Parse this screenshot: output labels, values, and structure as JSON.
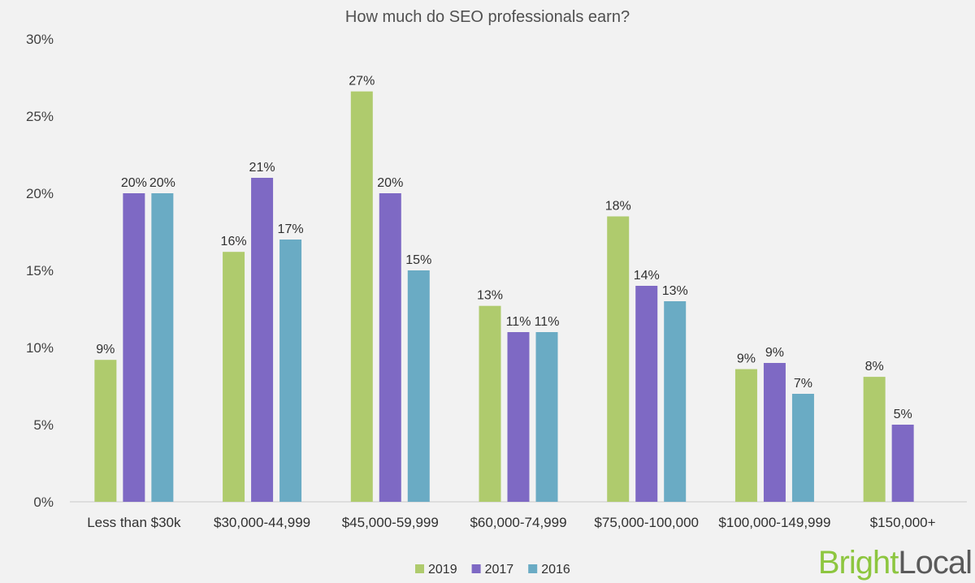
{
  "chart_data": {
    "type": "bar",
    "title": "How much do SEO professionals earn?",
    "categories": [
      "Less than $30k",
      "$30,000-44,999",
      "$45,000-59,999",
      "$60,000-74,999",
      "$75,000-100,000",
      "$100,000-149,999",
      "$150,000+"
    ],
    "series": [
      {
        "name": "2019",
        "color": "#afcb6d",
        "values": [
          9.2,
          16.2,
          26.6,
          12.7,
          18.5,
          8.6,
          8.1
        ],
        "labels": [
          "9%",
          "16%",
          "27%",
          "13%",
          "18%",
          "9%",
          "8%"
        ]
      },
      {
        "name": "2017",
        "color": "#7e69c4",
        "values": [
          20,
          21,
          20,
          11,
          14,
          9,
          5
        ],
        "labels": [
          "20%",
          "21%",
          "20%",
          "11%",
          "14%",
          "9%",
          "5%"
        ]
      },
      {
        "name": "2016",
        "color": "#6aabc4",
        "values": [
          20,
          17,
          15,
          11,
          13,
          7,
          null
        ],
        "labels": [
          "20%",
          "17%",
          "15%",
          "11%",
          "13%",
          "7%",
          null
        ]
      }
    ],
    "ylim": [
      0,
      30
    ],
    "yticks": [
      0,
      5,
      10,
      15,
      20,
      25,
      30
    ],
    "ytick_labels": [
      "0%",
      "5%",
      "10%",
      "15%",
      "20%",
      "25%",
      "30%"
    ],
    "xlabel": "",
    "ylabel": "",
    "grid": false,
    "legend_position": "bottom-center"
  },
  "branding": {
    "logo_part1": "Bright",
    "logo_part2": "Local",
    "color1": "#8dc63f",
    "color2": "#5a5a5a"
  }
}
